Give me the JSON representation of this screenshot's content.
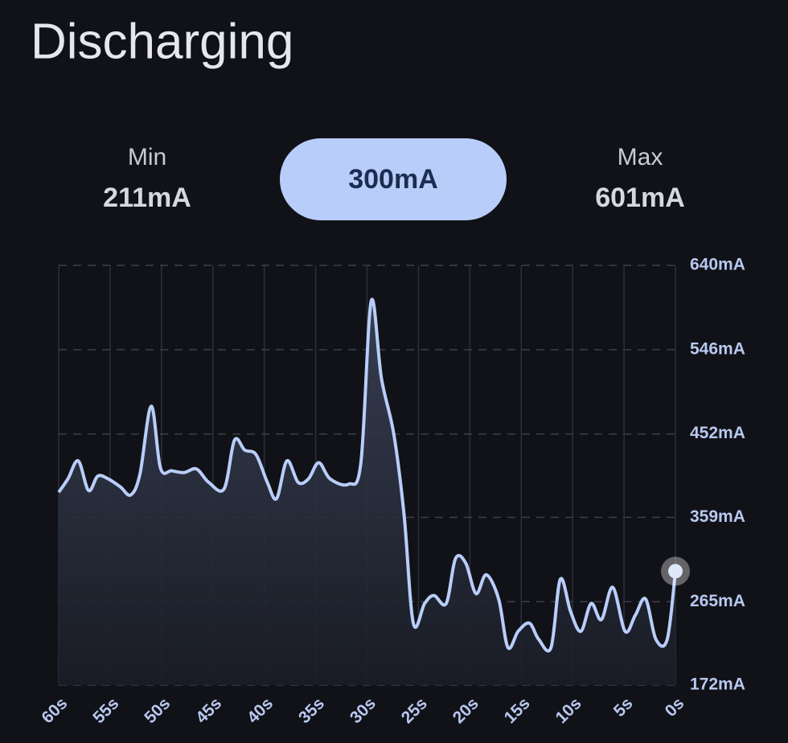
{
  "header": {
    "title": "Discharging"
  },
  "stats": {
    "min": {
      "label": "Min",
      "value": "211mA"
    },
    "current": "300mA",
    "max": {
      "label": "Max",
      "value": "601mA"
    }
  },
  "chart_data": {
    "type": "area",
    "x": [
      60,
      59.1,
      58.1,
      57.1,
      56.2,
      55.2,
      54,
      53,
      52.1,
      51,
      50.1,
      49,
      47.8,
      46.6,
      45.4,
      43.9,
      42.9,
      41.9,
      40.8,
      39.7,
      38.8,
      37.8,
      36.7,
      35.7,
      34.7,
      33.6,
      31.8,
      30.6,
      29.6,
      28.6,
      27.4,
      26.4,
      25.5,
      24.4,
      23.5,
      22.3,
      21.4,
      20.4,
      19.4,
      18.4,
      17.2,
      16.3,
      15.3,
      14.2,
      13.3,
      12.1,
      11.2,
      10.2,
      9.2,
      8.2,
      7.2,
      6.1,
      4.9,
      3.9,
      2.9,
      1.9,
      0.8,
      0
    ],
    "series": [
      {
        "color": "#b9cdfa",
        "values": [
          387,
          402,
          422,
          389,
          405,
          402,
          393,
          384,
          407,
          483,
          414,
          411,
          409,
          413,
          398,
          391,
          445,
          434,
          429,
          398,
          380,
          422,
          398,
          402,
          420,
          402,
          396,
          420,
          600,
          514,
          452,
          362,
          241,
          263,
          272,
          263,
          313,
          308,
          274,
          295,
          268,
          214,
          232,
          241,
          223,
          214,
          290,
          254,
          232,
          263,
          245,
          281,
          232,
          250,
          268,
          223,
          223,
          299
        ]
      }
    ],
    "xlim": [
      60,
      0
    ],
    "xticks": [
      {
        "value": 60,
        "label": "60s"
      },
      {
        "value": 55,
        "label": "55s"
      },
      {
        "value": 50,
        "label": "50s"
      },
      {
        "value": 45,
        "label": "45s"
      },
      {
        "value": 40,
        "label": "40s"
      },
      {
        "value": 35,
        "label": "35s"
      },
      {
        "value": 30,
        "label": "30s"
      },
      {
        "value": 25,
        "label": "25s"
      },
      {
        "value": 20,
        "label": "20s"
      },
      {
        "value": 15,
        "label": "15s"
      },
      {
        "value": 10,
        "label": "10s"
      },
      {
        "value": 5,
        "label": "5s"
      },
      {
        "value": 0,
        "label": "0s"
      }
    ],
    "ylim": [
      172,
      640
    ],
    "yticks": [
      {
        "value": 640,
        "label": "640mA"
      },
      {
        "value": 546,
        "label": "546mA"
      },
      {
        "value": 452,
        "label": "452mA"
      },
      {
        "value": 359,
        "label": "359mA"
      },
      {
        "value": 265,
        "label": "265mA"
      },
      {
        "value": 172,
        "label": "172mA"
      }
    ],
    "grid": true
  }
}
